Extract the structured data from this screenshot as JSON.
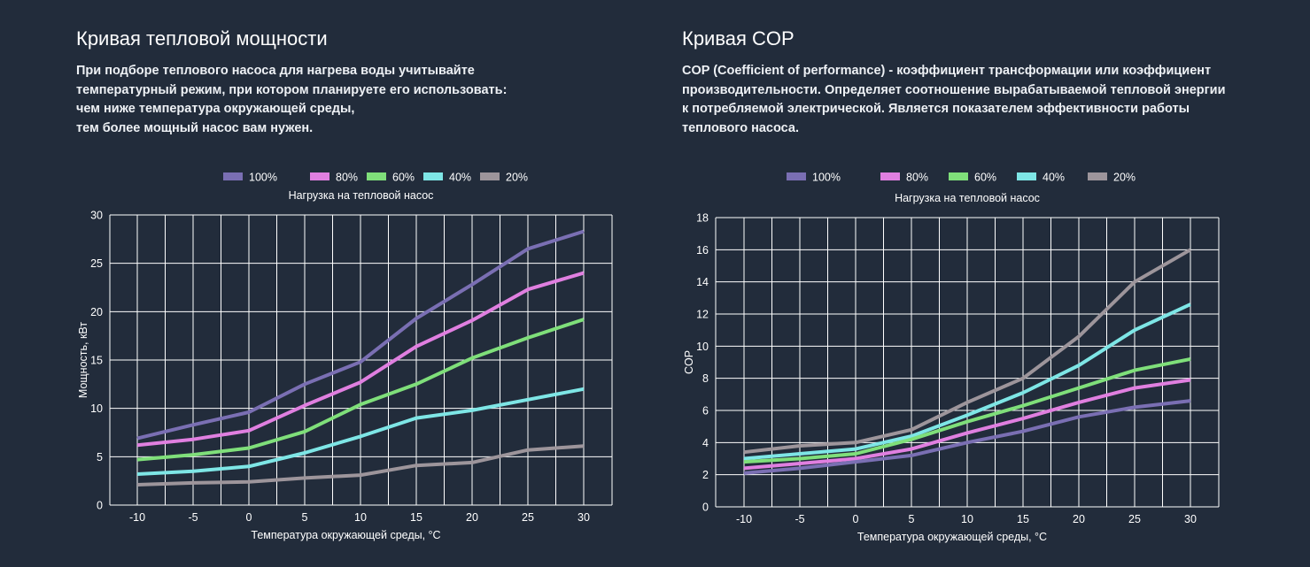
{
  "left_section": {
    "title": "Кривая тепловой мощности",
    "description_lines": [
      "При подборе теплового насоса для нагрева воды учитывайте",
      "температурный режим, при котором планируете его использовать:",
      "чем ниже температура окружающей среды,",
      "тем более мощный насос вам нужен."
    ]
  },
  "right_section": {
    "title": "Кривая COP",
    "description_lines": [
      "COP (Coefficient of performance) - коэффициент трансформации или коэффициент",
      "производительности. Определяет соотношение вырабатываемой тепловой энергии",
      "к потребляемой электрической. Является показателем эффективности работы",
      "теплового насоса."
    ]
  },
  "colors": {
    "background": "#222c3b",
    "grid": "#ffffff",
    "s100": "#7a6fb3",
    "s80": "#e07fe0",
    "s60": "#7fdf7a",
    "s40": "#7ee6e6",
    "s20": "#9d959b"
  },
  "chart_data": [
    {
      "type": "line",
      "title": "Нагрузка на тепловой насос",
      "xlabel": "Температура окружающей среды, °C",
      "ylabel": "Мощность, кВт",
      "x": [
        -10,
        -5,
        0,
        5,
        10,
        15,
        20,
        25,
        30
      ],
      "x_tick_labels": [
        "-10",
        "-5",
        "0",
        "5",
        "10",
        "15",
        "20",
        "25",
        "30"
      ],
      "ylim": [
        0,
        30
      ],
      "y_ticks": [
        0,
        5,
        10,
        15,
        20,
        25,
        30
      ],
      "y_tick_labels": [
        "0",
        "5",
        "10",
        "15",
        "20",
        "25",
        "30"
      ],
      "grid": true,
      "legend_position": "top-center",
      "series": [
        {
          "name": "100%",
          "color_key": "s100",
          "values": [
            6.9,
            8.3,
            9.6,
            12.5,
            14.8,
            19.3,
            22.8,
            26.5,
            28.3
          ]
        },
        {
          "name": "80%",
          "color_key": "s80",
          "values": [
            6.2,
            6.8,
            7.7,
            10.3,
            12.7,
            16.4,
            19.1,
            22.3,
            24.0
          ]
        },
        {
          "name": "60%",
          "color_key": "s60",
          "values": [
            4.7,
            5.2,
            5.9,
            7.6,
            10.4,
            12.5,
            15.2,
            17.3,
            19.2
          ]
        },
        {
          "name": "40%",
          "color_key": "s40",
          "values": [
            3.2,
            3.5,
            4.0,
            5.4,
            7.1,
            9.0,
            9.8,
            10.9,
            12.0
          ]
        },
        {
          "name": "20%",
          "color_key": "s20",
          "values": [
            2.1,
            2.3,
            2.4,
            2.8,
            3.1,
            4.1,
            4.4,
            5.7,
            6.1
          ]
        }
      ]
    },
    {
      "type": "line",
      "title": "Нагрузка на тепловой насос",
      "xlabel": "Температура окружающей среды, °C",
      "ylabel": "COP",
      "x": [
        -10,
        -5,
        0,
        5,
        10,
        15,
        20,
        25,
        30
      ],
      "x_tick_labels": [
        "-10",
        "-5",
        "0",
        "5",
        "10",
        "15",
        "20",
        "25",
        "30"
      ],
      "ylim": [
        0,
        18
      ],
      "y_ticks": [
        0,
        2,
        4,
        6,
        8,
        10,
        12,
        14,
        16,
        18
      ],
      "y_tick_labels": [
        "0",
        "2",
        "4",
        "6",
        "8",
        "10",
        "12",
        "14",
        "16",
        "18"
      ],
      "grid": true,
      "legend_position": "top-center",
      "series": [
        {
          "name": "100%",
          "color_key": "s100",
          "values": [
            2.1,
            2.4,
            2.8,
            3.2,
            4.0,
            4.7,
            5.6,
            6.2,
            6.6
          ]
        },
        {
          "name": "80%",
          "color_key": "s80",
          "values": [
            2.4,
            2.7,
            3.0,
            3.6,
            4.6,
            5.5,
            6.5,
            7.4,
            7.9
          ]
        },
        {
          "name": "60%",
          "color_key": "s60",
          "values": [
            2.8,
            3.0,
            3.3,
            4.2,
            5.3,
            6.3,
            7.4,
            8.5,
            9.2
          ]
        },
        {
          "name": "40%",
          "color_key": "s40",
          "values": [
            3.0,
            3.3,
            3.6,
            4.4,
            5.7,
            7.1,
            8.8,
            11.0,
            12.6
          ]
        },
        {
          "name": "20%",
          "color_key": "s20",
          "values": [
            3.4,
            3.8,
            4.0,
            4.8,
            6.5,
            8.0,
            10.6,
            14.0,
            16.0
          ]
        }
      ]
    }
  ]
}
